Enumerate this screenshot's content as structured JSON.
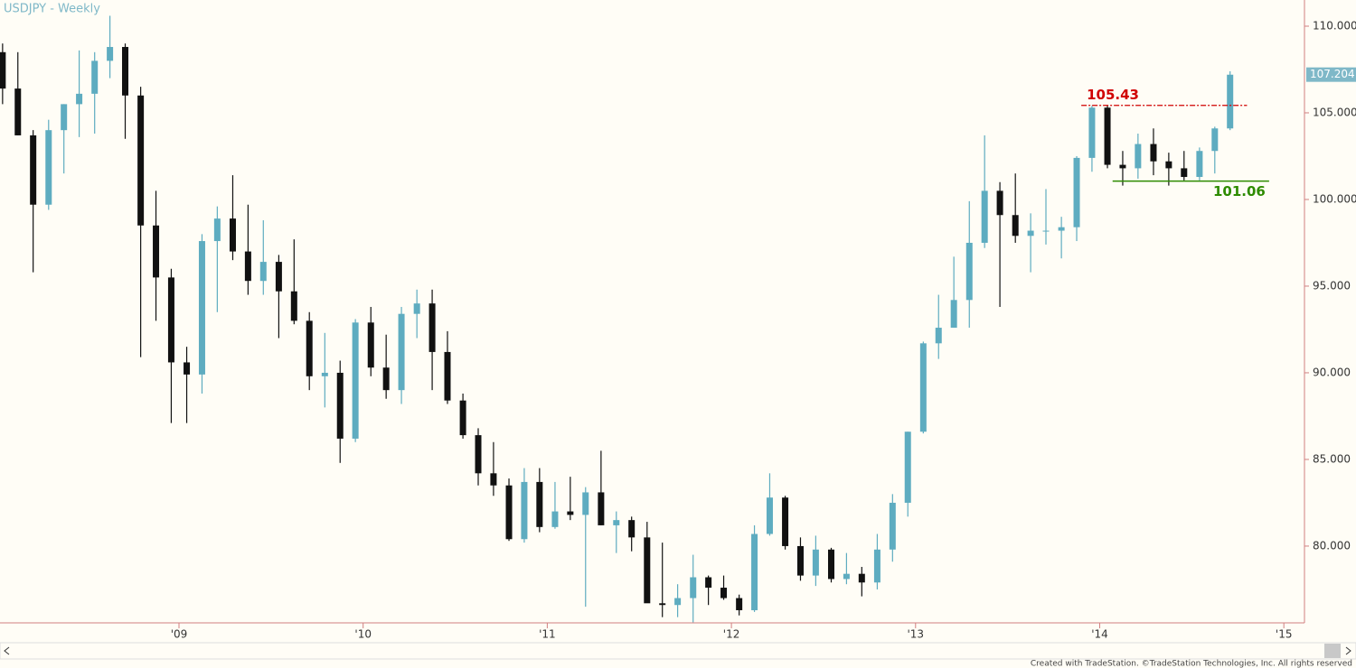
{
  "chart_data": {
    "type": "candlestick",
    "title": "USDJPY - Weekly",
    "up_color": "#5eacc0",
    "down_color": "#111111",
    "axis_color": "#d08080",
    "xlim": [
      2008.028,
      2015.112
    ],
    "ylim": [
      75.57,
      111.51
    ],
    "xticks": [
      {
        "value": 2009,
        "label": "'09"
      },
      {
        "value": 2010,
        "label": "'10"
      },
      {
        "value": 2011,
        "label": "'11"
      },
      {
        "value": 2012,
        "label": "'12"
      },
      {
        "value": 2013,
        "label": "'13"
      },
      {
        "value": 2014,
        "label": "'14"
      },
      {
        "value": 2015,
        "label": "'15"
      }
    ],
    "yticks": [
      {
        "value": 80,
        "label": "80.000"
      },
      {
        "value": 85,
        "label": "85.000"
      },
      {
        "value": 90,
        "label": "90.000"
      },
      {
        "value": 95,
        "label": "95.000"
      },
      {
        "value": 100,
        "label": "100.000"
      },
      {
        "value": 105,
        "label": "105.000"
      },
      {
        "value": 110,
        "label": "110.000"
      }
    ],
    "x": [
      2008.042,
      2008.125,
      2008.208,
      2008.292,
      2008.375,
      2008.458,
      2008.542,
      2008.625,
      2008.708,
      2008.792,
      2008.875,
      2008.958,
      2009.042,
      2009.125,
      2009.208,
      2009.292,
      2009.375,
      2009.458,
      2009.542,
      2009.625,
      2009.708,
      2009.792,
      2009.875,
      2009.958,
      2010.042,
      2010.125,
      2010.208,
      2010.292,
      2010.375,
      2010.458,
      2010.542,
      2010.625,
      2010.708,
      2010.792,
      2010.875,
      2010.958,
      2011.042,
      2011.125,
      2011.208,
      2011.292,
      2011.375,
      2011.458,
      2011.542,
      2011.625,
      2011.708,
      2011.792,
      2011.875,
      2011.958,
      2012.042,
      2012.125,
      2012.208,
      2012.292,
      2012.375,
      2012.458,
      2012.542,
      2012.625,
      2012.708,
      2012.792,
      2012.875,
      2012.958,
      2013.042,
      2013.125,
      2013.208,
      2013.292,
      2013.375,
      2013.458,
      2013.542,
      2013.625,
      2013.708,
      2013.792,
      2013.875,
      2013.958,
      2014.042,
      2014.125,
      2014.208,
      2014.292,
      2014.375,
      2014.458,
      2014.542,
      2014.625,
      2014.708
    ],
    "open": [
      108.5,
      106.4,
      103.7,
      99.7,
      104.0,
      105.5,
      106.1,
      108.0,
      108.8,
      106.0,
      98.5,
      95.5,
      90.6,
      89.9,
      97.6,
      98.9,
      97.0,
      95.3,
      96.4,
      94.7,
      93.0,
      89.8,
      90.0,
      86.2,
      92.9,
      90.3,
      89.0,
      93.4,
      94.0,
      91.2,
      88.4,
      86.4,
      84.2,
      83.5,
      80.4,
      83.7,
      81.1,
      82.0,
      81.8,
      83.1,
      81.2,
      81.5,
      80.5,
      76.7,
      76.6,
      77.0,
      78.2,
      77.6,
      77.0,
      76.3,
      80.7,
      82.8,
      80.0,
      78.3,
      79.8,
      78.1,
      78.4,
      77.9,
      79.8,
      82.5,
      86.6,
      91.7,
      92.6,
      94.2,
      97.5,
      100.5,
      99.1,
      97.9,
      98.2,
      98.2,
      98.4,
      102.4,
      105.3,
      102.0,
      101.8,
      103.2,
      102.2,
      101.8,
      101.3,
      102.8,
      104.1
    ],
    "high": [
      109.0,
      108.5,
      104.0,
      104.6,
      105.5,
      108.6,
      108.5,
      110.6,
      109.0,
      106.5,
      100.5,
      96.0,
      91.5,
      98.0,
      99.6,
      101.4,
      99.7,
      98.8,
      96.8,
      97.7,
      93.5,
      92.3,
      90.7,
      93.1,
      93.8,
      92.2,
      93.8,
      94.8,
      94.8,
      92.4,
      88.8,
      86.8,
      86.0,
      83.9,
      84.5,
      84.5,
      83.7,
      84.0,
      83.4,
      85.5,
      82.0,
      81.7,
      81.4,
      80.2,
      77.8,
      79.5,
      78.3,
      78.3,
      77.2,
      81.2,
      84.2,
      82.9,
      80.5,
      80.6,
      79.9,
      79.6,
      78.8,
      80.7,
      83.0,
      86.6,
      91.8,
      94.5,
      96.7,
      99.9,
      103.7,
      101.0,
      101.5,
      99.2,
      100.6,
      99.0,
      102.5,
      105.4,
      105.43,
      102.8,
      103.8,
      104.1,
      102.7,
      102.8,
      103.0,
      104.2,
      107.4
    ],
    "low": [
      105.5,
      103.7,
      95.8,
      99.4,
      101.5,
      103.6,
      103.8,
      107.0,
      103.5,
      90.9,
      93.0,
      87.1,
      87.1,
      88.8,
      93.5,
      96.5,
      94.5,
      94.5,
      92.0,
      92.8,
      89.0,
      88.0,
      84.8,
      86.0,
      89.8,
      88.5,
      88.2,
      92.0,
      89.0,
      88.2,
      86.2,
      83.5,
      82.9,
      80.3,
      80.2,
      80.8,
      81.0,
      81.5,
      76.5,
      81.2,
      79.6,
      79.7,
      76.9,
      75.9,
      75.9,
      75.6,
      76.6,
      76.9,
      76.0,
      76.2,
      80.6,
      79.8,
      78.0,
      77.7,
      77.9,
      77.8,
      77.1,
      77.5,
      79.1,
      81.7,
      86.5,
      90.8,
      92.6,
      92.6,
      97.2,
      93.8,
      97.5,
      95.8,
      97.4,
      96.6,
      97.6,
      101.6,
      101.8,
      100.8,
      101.2,
      101.4,
      100.8,
      101.1,
      101.1,
      101.5,
      104.0
    ],
    "close": [
      106.4,
      103.7,
      99.7,
      104.0,
      105.5,
      106.1,
      108.0,
      108.8,
      106.0,
      98.5,
      95.5,
      90.6,
      89.9,
      97.6,
      98.9,
      97.0,
      95.3,
      96.4,
      94.7,
      93.0,
      89.8,
      90.0,
      86.2,
      92.9,
      90.3,
      89.0,
      93.4,
      94.0,
      91.2,
      88.4,
      86.4,
      84.2,
      83.5,
      80.4,
      83.7,
      81.1,
      82.0,
      81.8,
      83.1,
      81.2,
      81.5,
      80.5,
      76.7,
      76.6,
      77.0,
      78.2,
      77.6,
      77.0,
      76.3,
      80.7,
      82.8,
      80.0,
      78.3,
      79.8,
      78.1,
      78.4,
      77.9,
      79.8,
      82.5,
      86.6,
      91.7,
      92.6,
      94.2,
      97.5,
      100.5,
      99.1,
      97.9,
      98.2,
      98.2,
      98.4,
      102.4,
      105.3,
      102.0,
      101.8,
      103.2,
      102.2,
      101.8,
      101.3,
      102.8,
      104.1,
      107.2
    ],
    "levels": [
      {
        "value": 105.43,
        "x": [
          2013.9,
          2014.8
        ],
        "color": "#d00000",
        "style": "dashdot"
      },
      {
        "value": 101.06,
        "x": [
          2014.07,
          2014.92
        ],
        "color": "#2e8b00",
        "style": "solid"
      }
    ],
    "last_price": {
      "value": 107.204,
      "color": "#7fb8c8"
    }
  },
  "footer": "Created with TradeStation. ©TradeStation Technologies, Inc. All rights reserved"
}
